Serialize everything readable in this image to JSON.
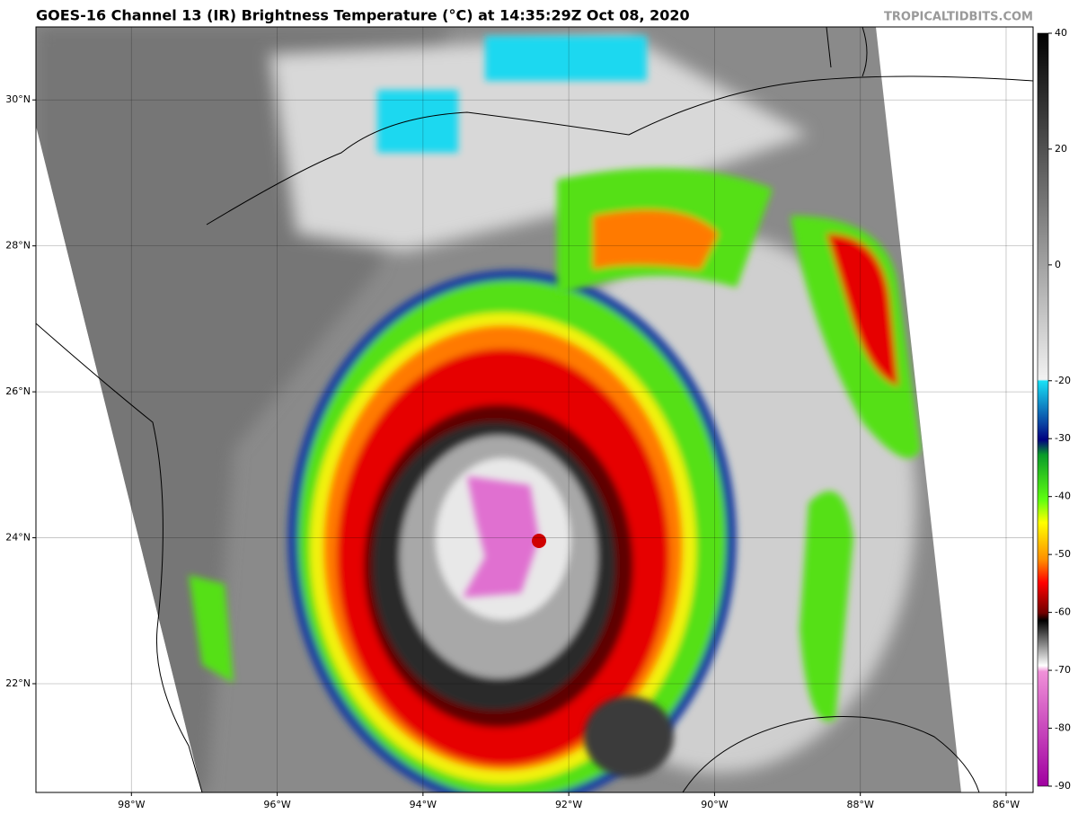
{
  "header": {
    "title": "GOES-16 Channel 13 (IR) Brightness Temperature (°C) at 14:35:29Z Oct 08, 2020",
    "credit": "TROPICALTIDBITS.COM"
  },
  "map": {
    "lon_range": [
      -99.31,
      -85.63
    ],
    "lat_range": [
      20.51,
      31.0
    ],
    "lon_ticks": [
      {
        "value": -98,
        "label": "98°W"
      },
      {
        "value": -96,
        "label": "96°W"
      },
      {
        "value": -94,
        "label": "94°W"
      },
      {
        "value": -92,
        "label": "92°W"
      },
      {
        "value": -90,
        "label": "90°W"
      },
      {
        "value": -88,
        "label": "88°W"
      },
      {
        "value": -86,
        "label": "86°W"
      }
    ],
    "lat_ticks": [
      {
        "value": 30,
        "label": "30°N"
      },
      {
        "value": 28,
        "label": "28°N"
      },
      {
        "value": 26,
        "label": "26°N"
      },
      {
        "value": 24,
        "label": "24°N"
      },
      {
        "value": 22,
        "label": "22°N"
      }
    ]
  },
  "colorbar": {
    "range": [
      -90,
      40
    ],
    "ticks": [
      40,
      20,
      0,
      -20,
      -30,
      -40,
      -50,
      -60,
      -70,
      -80,
      -90
    ]
  }
}
